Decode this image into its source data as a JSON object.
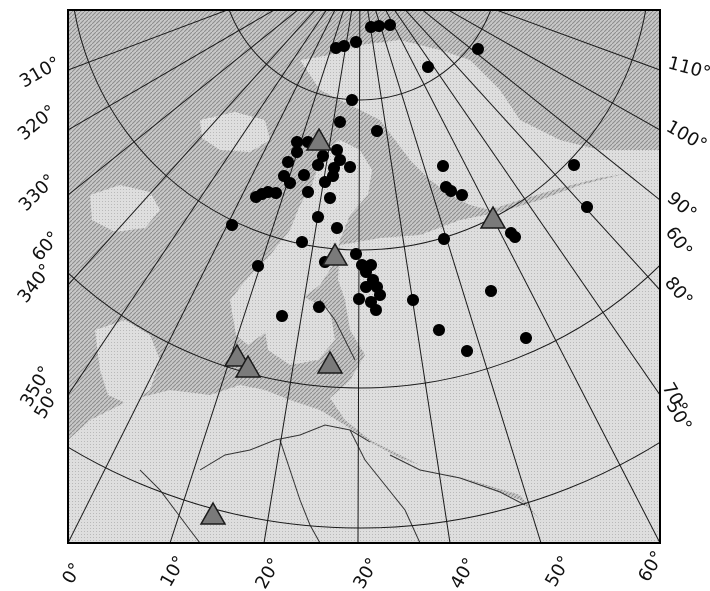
{
  "map": {
    "colors": {
      "background": "#ffffff",
      "land_light": "#dedede",
      "land_stipple": "#b9b9b9",
      "sea_hatch": "#8c8c8c",
      "sea_base": "#c8c8c8",
      "grid": "#1a1a1a",
      "frame": "#000000",
      "station": "#000000",
      "triangle_fill": "#7a7a7a",
      "triangle_stroke": "#1a1a1a"
    },
    "bottom_labels": [
      "0°",
      "10°",
      "20°",
      "30°",
      "40°",
      "50°",
      "60°"
    ],
    "left_labels": [
      "310°",
      "320°",
      "330°",
      "340°",
      "350°"
    ],
    "right_labels": [
      "110°",
      "100°",
      "90°",
      "80°",
      "70°"
    ],
    "parallel_labels_left": [
      "60°",
      "50°"
    ],
    "parallel_labels_right": [
      "60°",
      "50°"
    ],
    "station_markers": "circle",
    "array_markers": "triangle"
  }
}
